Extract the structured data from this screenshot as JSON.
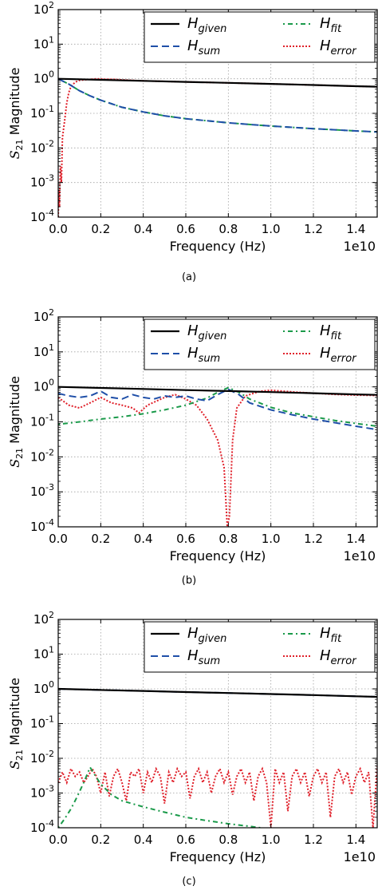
{
  "chart_data": [
    {
      "type": "line",
      "caption": "(a)",
      "xlabel": "Frequency (Hz)",
      "ylabel": "S21 Magnitude",
      "x_offset_label": "1e10",
      "xlim": [
        0.0,
        1.5
      ],
      "ylim": [
        0.0001,
        100
      ],
      "yscale": "log",
      "grid": true,
      "legend_placement": "top-right",
      "x_ticks": [
        "0.0",
        "0.2",
        "0.4",
        "0.6",
        "0.8",
        "1.0",
        "1.2",
        "1.4"
      ],
      "y_ticks": [
        "10^-4",
        "10^-3",
        "10^-2",
        "10^-1",
        "10^0",
        "10^1",
        "10^2"
      ],
      "series": [
        {
          "name": "H_given",
          "color": "#000000",
          "style": "solid",
          "x": [
            0.0,
            0.2,
            0.4,
            0.6,
            0.8,
            1.0,
            1.2,
            1.4,
            1.5
          ],
          "y": [
            1.0,
            0.93,
            0.87,
            0.81,
            0.76,
            0.71,
            0.66,
            0.61,
            0.59
          ]
        },
        {
          "name": "H_sum",
          "color": "#1f4fa8",
          "style": "dashed",
          "x": [
            0.0,
            0.05,
            0.1,
            0.15,
            0.2,
            0.3,
            0.4,
            0.5,
            0.6,
            0.8,
            1.0,
            1.2,
            1.4,
            1.5
          ],
          "y": [
            1.0,
            0.7,
            0.45,
            0.32,
            0.24,
            0.15,
            0.11,
            0.085,
            0.07,
            0.053,
            0.043,
            0.036,
            0.031,
            0.029
          ]
        },
        {
          "name": "H_fit",
          "color": "#1a9a4a",
          "style": "dashdot",
          "x": [
            0.0,
            0.05,
            0.1,
            0.15,
            0.2,
            0.3,
            0.4,
            0.5,
            0.6,
            0.8,
            1.0,
            1.2,
            1.4,
            1.5
          ],
          "y": [
            1.0,
            0.7,
            0.45,
            0.32,
            0.24,
            0.15,
            0.11,
            0.085,
            0.07,
            0.053,
            0.043,
            0.036,
            0.031,
            0.029
          ]
        },
        {
          "name": "H_error",
          "color": "#e0202a",
          "style": "dotted",
          "x": [
            0.0,
            0.003,
            0.006,
            0.01,
            0.015,
            0.02,
            0.03,
            0.04,
            0.05,
            0.06,
            0.08,
            0.1,
            0.14,
            0.18,
            0.22,
            0.26,
            0.3,
            0.4,
            0.6,
            0.8,
            1.0,
            1.2,
            1.4,
            1.5
          ],
          "y": [
            0.0001,
            0.0006,
            0.0002,
            0.003,
            0.001,
            0.02,
            0.06,
            0.2,
            0.4,
            0.6,
            0.8,
            0.9,
            0.95,
            1.0,
            0.97,
            0.96,
            0.93,
            0.87,
            0.81,
            0.76,
            0.71,
            0.66,
            0.61,
            0.59
          ]
        }
      ]
    },
    {
      "type": "line",
      "caption": "(b)",
      "xlabel": "Frequency (Hz)",
      "ylabel": "S21 Magnitude",
      "x_offset_label": "1e10",
      "xlim": [
        0.0,
        1.5
      ],
      "ylim": [
        0.0001,
        100
      ],
      "yscale": "log",
      "grid": true,
      "legend_placement": "top-right",
      "x_ticks": [
        "0.0",
        "0.2",
        "0.4",
        "0.6",
        "0.8",
        "1.0",
        "1.2",
        "1.4"
      ],
      "y_ticks": [
        "10^-4",
        "10^-3",
        "10^-2",
        "10^-1",
        "10^0",
        "10^1",
        "10^2"
      ],
      "series": [
        {
          "name": "H_given",
          "color": "#000000",
          "style": "solid",
          "x": [
            0.0,
            0.2,
            0.4,
            0.6,
            0.8,
            1.0,
            1.2,
            1.4,
            1.5
          ],
          "y": [
            1.0,
            0.93,
            0.87,
            0.81,
            0.76,
            0.71,
            0.66,
            0.61,
            0.59
          ]
        },
        {
          "name": "H_sum",
          "color": "#1f4fa8",
          "style": "dashed",
          "x": [
            0.0,
            0.05,
            0.1,
            0.15,
            0.2,
            0.25,
            0.3,
            0.35,
            0.4,
            0.45,
            0.5,
            0.55,
            0.6,
            0.65,
            0.7,
            0.75,
            0.8,
            0.85,
            0.9,
            1.0,
            1.1,
            1.2,
            1.3,
            1.4,
            1.5
          ],
          "y": [
            0.65,
            0.55,
            0.5,
            0.55,
            0.75,
            0.5,
            0.45,
            0.6,
            0.5,
            0.45,
            0.55,
            0.5,
            0.55,
            0.45,
            0.4,
            0.6,
            0.85,
            0.6,
            0.35,
            0.22,
            0.16,
            0.12,
            0.095,
            0.075,
            0.06
          ]
        },
        {
          "name": "H_fit",
          "color": "#1a9a4a",
          "style": "dashdot",
          "x": [
            0.0,
            0.1,
            0.2,
            0.3,
            0.4,
            0.5,
            0.6,
            0.7,
            0.75,
            0.8,
            0.85,
            0.9,
            1.0,
            1.1,
            1.2,
            1.3,
            1.4,
            1.5
          ],
          "y": [
            0.085,
            0.1,
            0.12,
            0.14,
            0.17,
            0.22,
            0.3,
            0.48,
            0.7,
            0.95,
            0.7,
            0.45,
            0.26,
            0.18,
            0.14,
            0.11,
            0.09,
            0.075
          ]
        },
        {
          "name": "H_error",
          "color": "#e0202a",
          "style": "dotted",
          "x": [
            0.0,
            0.05,
            0.1,
            0.15,
            0.2,
            0.25,
            0.3,
            0.35,
            0.38,
            0.42,
            0.5,
            0.55,
            0.6,
            0.65,
            0.7,
            0.75,
            0.78,
            0.795,
            0.805,
            0.82,
            0.84,
            0.88,
            0.95,
            1.0,
            1.1,
            1.2,
            1.3,
            1.4,
            1.5
          ],
          "y": [
            0.5,
            0.3,
            0.25,
            0.35,
            0.5,
            0.35,
            0.3,
            0.25,
            0.18,
            0.3,
            0.5,
            0.6,
            0.45,
            0.3,
            0.12,
            0.03,
            0.005,
            0.0001,
            0.0002,
            0.03,
            0.25,
            0.55,
            0.75,
            0.8,
            0.72,
            0.66,
            0.61,
            0.58,
            0.57
          ]
        }
      ]
    },
    {
      "type": "line",
      "caption": "(c)",
      "xlabel": "Frequency (Hz)",
      "ylabel": "S21 Magnitude",
      "x_offset_label": "1e10",
      "xlim": [
        0.0,
        1.5
      ],
      "ylim": [
        0.0001,
        100
      ],
      "yscale": "log",
      "grid": true,
      "legend_placement": "top-right",
      "x_ticks": [
        "0.0",
        "0.2",
        "0.4",
        "0.6",
        "0.8",
        "1.0",
        "1.2",
        "1.4"
      ],
      "y_ticks": [
        "10^-4",
        "10^-3",
        "10^-2",
        "10^-1",
        "10^0",
        "10^1",
        "10^2"
      ],
      "series": [
        {
          "name": "H_given",
          "color": "#000000",
          "style": "solid",
          "x": [
            0.0,
            0.2,
            0.4,
            0.6,
            0.8,
            1.0,
            1.2,
            1.4,
            1.5
          ],
          "y": [
            1.0,
            0.93,
            0.87,
            0.81,
            0.76,
            0.71,
            0.66,
            0.61,
            0.59
          ]
        },
        {
          "name": "H_sum",
          "color": "#1f4fa8",
          "style": "dashed",
          "x": [
            0.0,
            0.2,
            0.4,
            0.6,
            0.8,
            1.0,
            1.2,
            1.4,
            1.5
          ],
          "y": [
            1.0,
            0.93,
            0.87,
            0.81,
            0.76,
            0.71,
            0.66,
            0.61,
            0.59
          ]
        },
        {
          "name": "H_fit",
          "color": "#1a9a4a",
          "style": "dashdot",
          "x": [
            0.0,
            0.03,
            0.06,
            0.09,
            0.12,
            0.15,
            0.17,
            0.2,
            0.25,
            0.3,
            0.4,
            0.5,
            0.6,
            0.7,
            0.8,
            0.9,
            0.95
          ],
          "y": [
            0.0001,
            0.00018,
            0.00035,
            0.0008,
            0.002,
            0.0055,
            0.0035,
            0.0018,
            0.0009,
            0.0006,
            0.0004,
            0.00028,
            0.0002,
            0.00016,
            0.00013,
            0.00011,
            0.0001
          ]
        },
        {
          "name": "H_error",
          "color": "#e0202a",
          "style": "dotted",
          "x": [
            0.0,
            0.02,
            0.04,
            0.06,
            0.08,
            0.1,
            0.12,
            0.14,
            0.16,
            0.18,
            0.2,
            0.22,
            0.24,
            0.26,
            0.28,
            0.3,
            0.32,
            0.34,
            0.36,
            0.38,
            0.4,
            0.42,
            0.44,
            0.46,
            0.48,
            0.5,
            0.52,
            0.54,
            0.56,
            0.58,
            0.6,
            0.62,
            0.64,
            0.66,
            0.68,
            0.7,
            0.72,
            0.74,
            0.76,
            0.78,
            0.8,
            0.82,
            0.84,
            0.86,
            0.88,
            0.9,
            0.92,
            0.94,
            0.96,
            0.98,
            1.0,
            1.02,
            1.04,
            1.06,
            1.08,
            1.1,
            1.12,
            1.14,
            1.16,
            1.18,
            1.2,
            1.22,
            1.24,
            1.26,
            1.28,
            1.3,
            1.32,
            1.34,
            1.36,
            1.38,
            1.4,
            1.42,
            1.44,
            1.46,
            1.48,
            1.5
          ],
          "y": [
            0.002,
            0.004,
            0.002,
            0.005,
            0.003,
            0.004,
            0.002,
            0.003,
            0.005,
            0.003,
            0.001,
            0.004,
            0.0008,
            0.003,
            0.005,
            0.002,
            0.0006,
            0.004,
            0.003,
            0.005,
            0.001,
            0.004,
            0.002,
            0.005,
            0.003,
            0.0005,
            0.004,
            0.002,
            0.005,
            0.003,
            0.004,
            0.0007,
            0.003,
            0.005,
            0.002,
            0.004,
            0.001,
            0.003,
            0.005,
            0.002,
            0.004,
            0.0009,
            0.003,
            0.005,
            0.002,
            0.004,
            0.0006,
            0.003,
            0.005,
            0.002,
            0.0001,
            0.005,
            0.002,
            0.004,
            0.0003,
            0.003,
            0.005,
            0.002,
            0.004,
            0.0008,
            0.003,
            0.005,
            0.002,
            0.004,
            0.0002,
            0.003,
            0.005,
            0.002,
            0.004,
            0.0009,
            0.003,
            0.005,
            0.002,
            0.004,
            0.0001,
            0.006
          ]
        }
      ]
    }
  ]
}
